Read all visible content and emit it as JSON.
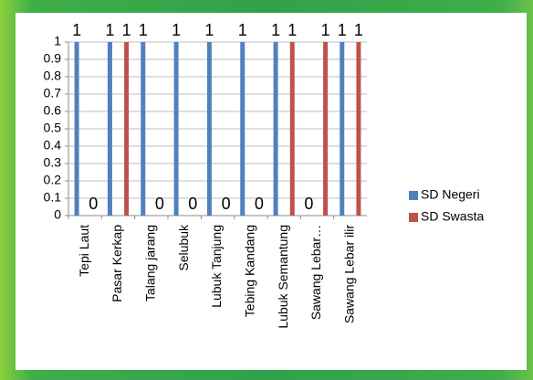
{
  "chart_data": {
    "type": "bar",
    "categories": [
      "Tepi Laut",
      "Pasar Kerkap",
      "Talang jarang",
      "Selubuk",
      "Lubuk Tanjung",
      "Tebing Kandang",
      "Lubuk Semantung",
      "Sawang Lebar…",
      "Sawang Lebar ilir"
    ],
    "series": [
      {
        "name": "SD Negeri",
        "color": "#4f81bd",
        "values": [
          1,
          1,
          1,
          1,
          1,
          1,
          1,
          0,
          1
        ]
      },
      {
        "name": "SD Swasta",
        "color": "#c0504d",
        "values": [
          0,
          1,
          0,
          0,
          0,
          0,
          1,
          1,
          1
        ]
      }
    ],
    "ylim": [
      0,
      1
    ],
    "yticks": [
      0,
      0.1,
      0.2,
      0.3,
      0.4,
      0.5,
      0.6,
      0.7,
      0.8,
      0.9,
      1
    ],
    "grid": true,
    "legend": "right"
  }
}
